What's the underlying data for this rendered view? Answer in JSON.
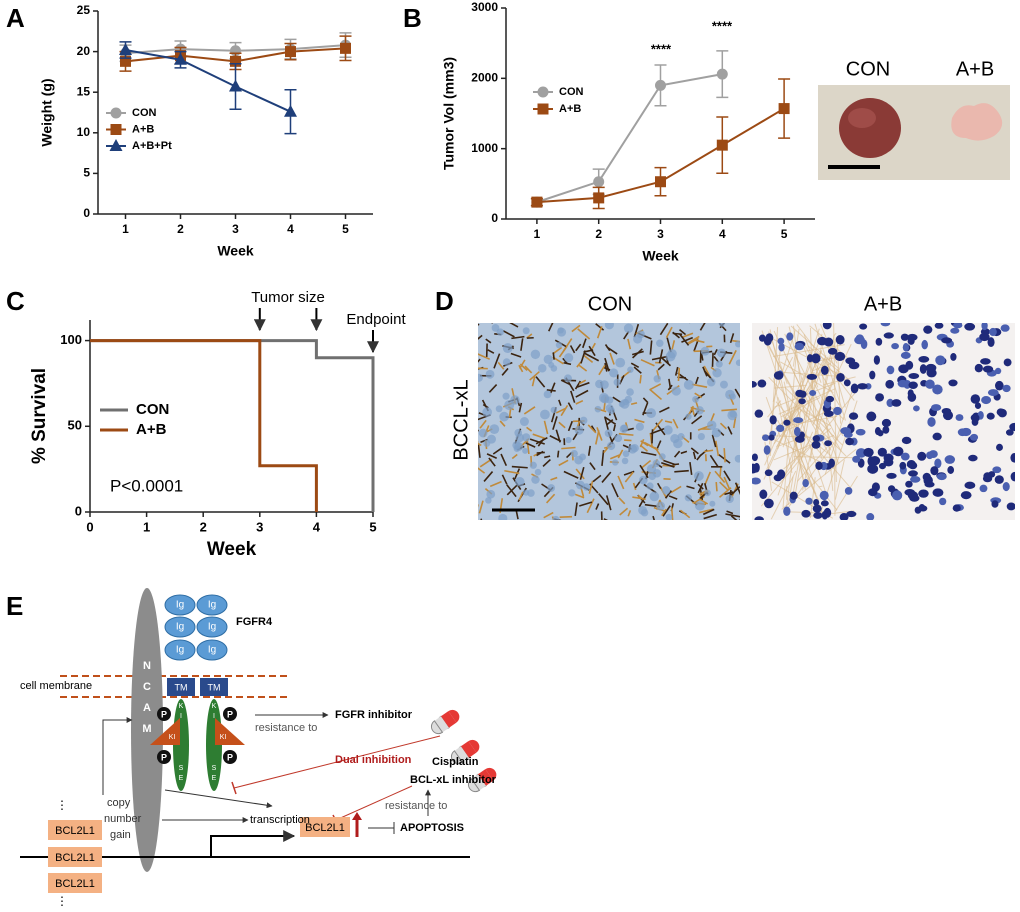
{
  "panels": [
    "A",
    "B",
    "C",
    "D",
    "E"
  ],
  "chart_data": [
    {
      "type": "line",
      "ylabel": "Weight (g)",
      "xlabel": "Week",
      "x": [
        1,
        2,
        3,
        4,
        5
      ],
      "xlim": [
        0.5,
        5.5
      ],
      "xticks": [
        1,
        2,
        3,
        4,
        5
      ],
      "ylim": [
        0,
        25
      ],
      "yticks": [
        0,
        5,
        10,
        15,
        20,
        25
      ],
      "legend": "center left",
      "series": [
        {
          "name": "CON",
          "color": "#a0a0a0",
          "marker": "circle",
          "values": [
            19.8,
            20.3,
            20.1,
            20.3,
            20.8
          ],
          "errors": [
            1.0,
            1.0,
            1.0,
            1.2,
            1.5
          ]
        },
        {
          "name": "A+B",
          "color": "#9c4a14",
          "marker": "square",
          "values": [
            18.8,
            19.5,
            18.8,
            20.0,
            20.4
          ],
          "errors": [
            1.2,
            1.0,
            1.0,
            1.0,
            1.5
          ]
        },
        {
          "name": "A+B+Pt",
          "color": "#1f3f7a",
          "marker": "triangle",
          "values": [
            20.2,
            19.0,
            15.7,
            12.6,
            null
          ],
          "errors": [
            1.0,
            1.0,
            2.8,
            2.7,
            null
          ]
        }
      ]
    },
    {
      "type": "line",
      "ylabel": "Tumor Vol  (mm3)",
      "xlabel": "Week",
      "x": [
        1,
        2,
        3,
        4,
        5
      ],
      "xlim": [
        0.5,
        5.5
      ],
      "xticks": [
        1,
        2,
        3,
        4,
        5
      ],
      "ylim": [
        0,
        3000
      ],
      "yticks": [
        0,
        1000,
        2000,
        3000
      ],
      "legend": "upper left",
      "series": [
        {
          "name": "CON",
          "color": "#a0a0a0",
          "marker": "circle",
          "values": [
            240,
            530,
            1900,
            2060,
            null
          ],
          "errors": [
            50,
            180,
            290,
            330,
            null
          ]
        },
        {
          "name": "A+B",
          "color": "#9c4a14",
          "marker": "square",
          "values": [
            240,
            300,
            530,
            1050,
            1570
          ],
          "errors": [
            50,
            150,
            200,
            400,
            420
          ]
        }
      ],
      "annotations": [
        "****",
        "****"
      ]
    },
    {
      "type": "step",
      "ylabel": "% Survival",
      "xlabel": "Week",
      "xlim": [
        0,
        5
      ],
      "xticks": [
        0,
        1,
        2,
        3,
        4,
        5
      ],
      "ylim": [
        0,
        112
      ],
      "yticks": [
        0,
        50,
        100
      ],
      "legend": "center left",
      "series": [
        {
          "name": "CON",
          "color": "#707070",
          "x": [
            0,
            4,
            5
          ],
          "values": [
            100,
            90,
            0
          ]
        },
        {
          "name": "A+B",
          "color": "#9c4a14",
          "x": [
            0,
            3,
            4
          ],
          "values": [
            100,
            27,
            0
          ]
        }
      ],
      "annotations": [
        "Tumor size",
        "Endpoint",
        "P<0.0001"
      ]
    }
  ],
  "photo": {
    "labels": [
      "CON",
      "A+B"
    ]
  },
  "ihc": {
    "labels": [
      "CON",
      "A+B"
    ],
    "stain": "BCCL-xL"
  },
  "diagram": {
    "fgfr4": "FGFR4",
    "ig": "Ig",
    "cell_membrane": "cell membrane",
    "tm": "TM",
    "ncam": [
      "N",
      "C",
      "A",
      "M"
    ],
    "p": "P",
    "k": "K",
    "i": "I",
    "s": "S",
    "e": "E",
    "ki": "KI",
    "resistance": "resistance to",
    "fgfr_inhibitor": "FGFR inhibitor",
    "dual": "Dual inhibition",
    "cisplatin": "Cisplatin",
    "bclxl_inhibitor": "BCL-xL inhibitor",
    "copy": [
      "copy",
      "number",
      "gain"
    ],
    "transcription": "transcription",
    "bcl2l1": "BCL2L1",
    "apoptosis": "APOPTOSIS",
    "ellipsis": "⋮"
  }
}
